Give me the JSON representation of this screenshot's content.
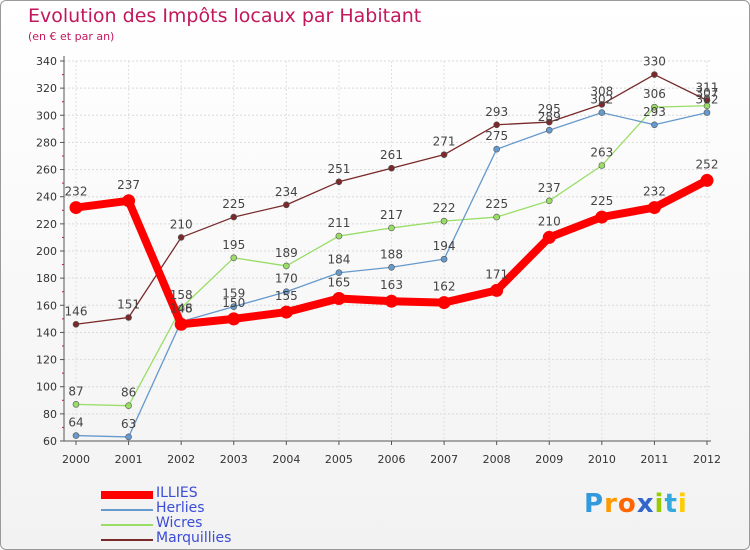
{
  "chart_data": {
    "type": "line",
    "title": "Evolution des Impôts locaux par Habitant",
    "subtitle": "(en € et par an)",
    "x": [
      "2000",
      "2001",
      "2002",
      "2003",
      "2004",
      "2005",
      "2006",
      "2007",
      "2008",
      "2009",
      "2010",
      "2011",
      "2012"
    ],
    "ylim": [
      60,
      340
    ],
    "yticks": [
      60,
      80,
      100,
      120,
      140,
      160,
      180,
      200,
      220,
      240,
      260,
      280,
      300,
      320,
      340
    ],
    "grid": true,
    "legend_position": "bottom-left",
    "series": [
      {
        "name": "ILLIES",
        "color": "#ff0000",
        "values": [
          232,
          237,
          146,
          150,
          155,
          165,
          163,
          162,
          171,
          210,
          225,
          232,
          252
        ]
      },
      {
        "name": "Herlies",
        "color": "#6699cc",
        "values": [
          64,
          63,
          148,
          159,
          170,
          184,
          188,
          194,
          275,
          289,
          302,
          293,
          302
        ]
      },
      {
        "name": "Wicres",
        "color": "#99dd66",
        "values": [
          87,
          86,
          158,
          195,
          189,
          211,
          217,
          222,
          225,
          237,
          263,
          306,
          307
        ]
      },
      {
        "name": "Marquillies",
        "color": "#7a2a2a",
        "values": [
          146,
          151,
          210,
          225,
          234,
          251,
          261,
          271,
          293,
          295,
          308,
          330,
          311
        ]
      }
    ]
  },
  "branding": {
    "logo_text": "Proxiti",
    "logo_letters": [
      "P",
      "r",
      "o",
      "x",
      "i",
      "t",
      "i"
    ],
    "logo_colors": [
      "#3399dd",
      "#ff9900",
      "#ff6600",
      "#3366cc",
      "#99cc00",
      "#33aadd",
      "#ffcc00"
    ]
  }
}
